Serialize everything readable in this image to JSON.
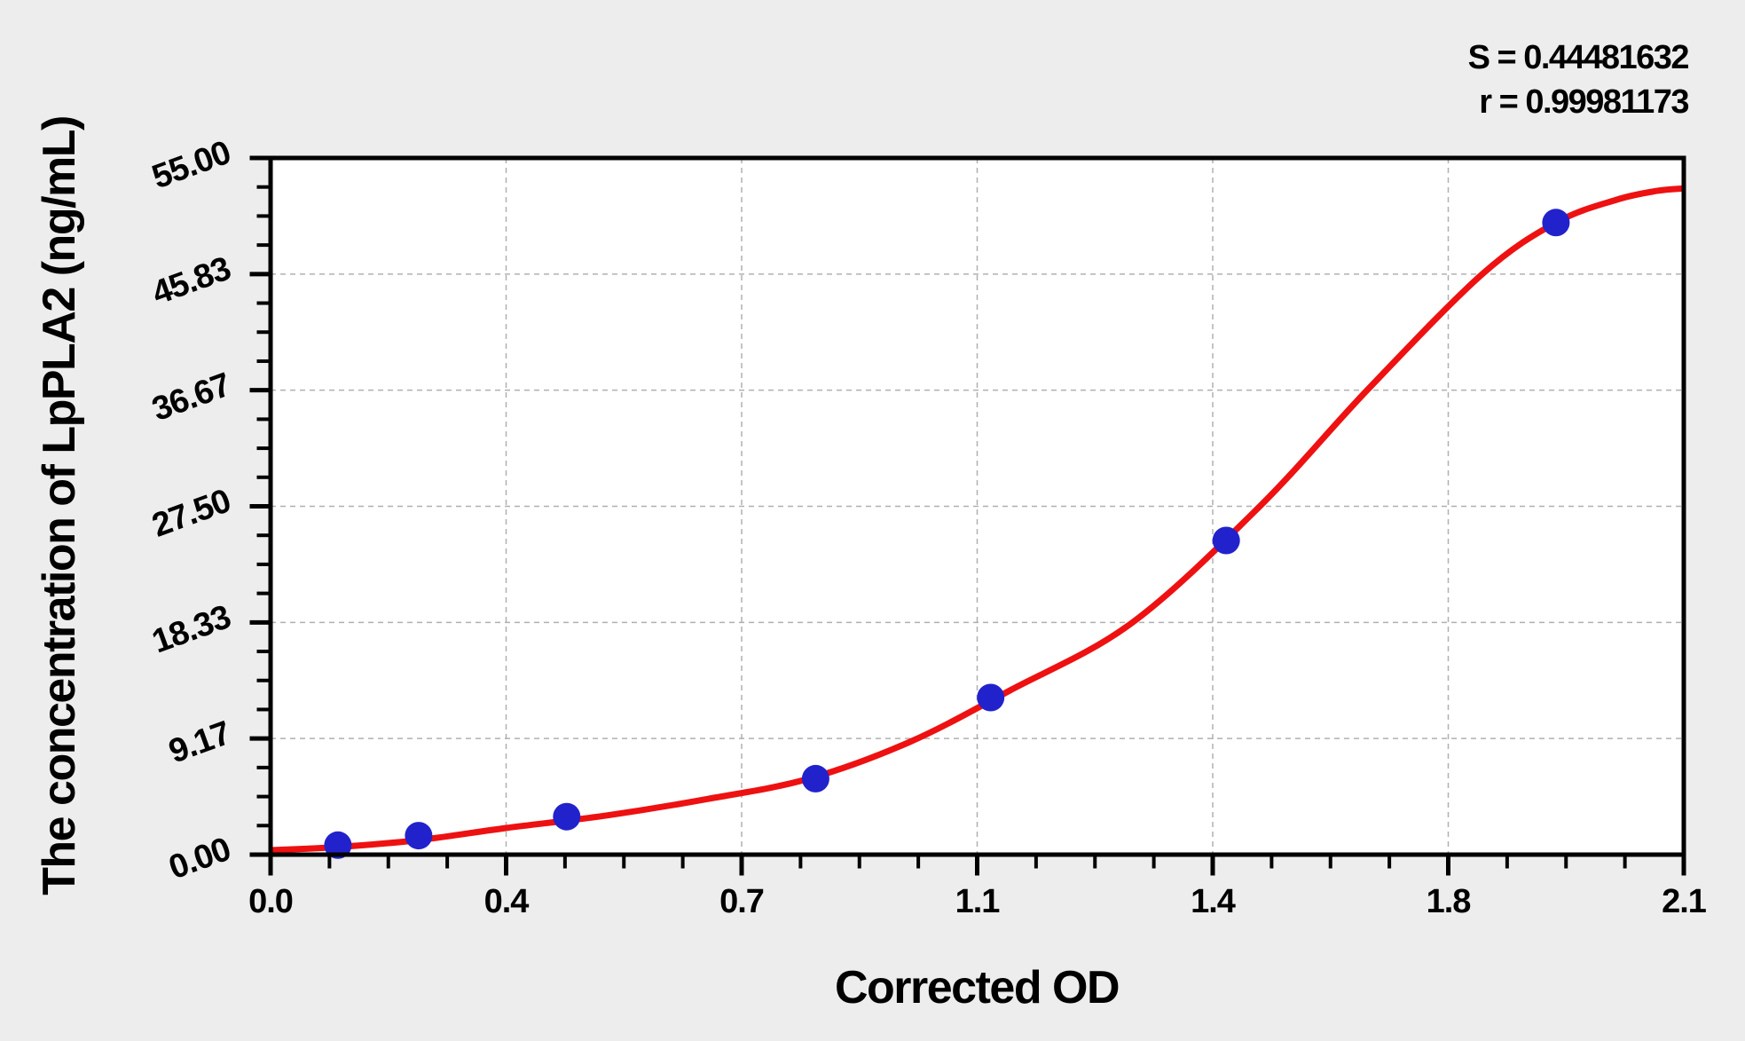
{
  "chart_data": {
    "type": "scatter",
    "title": "",
    "xlabel": "Corrected OD",
    "ylabel": "The concentration of LpPLA2 (ng/mL)",
    "annotations": [
      "S = 0.44481632",
      "r = 0.99981173"
    ],
    "xlim": [
      0,
      2.1
    ],
    "ylim": [
      0,
      55
    ],
    "x_major_ticks": [
      0,
      0.35,
      0.7,
      1.05,
      1.4,
      1.75,
      2.1
    ],
    "x_tick_labels": [
      "0.0",
      "0.4",
      "0.7",
      "1.1",
      "1.4",
      "1.8",
      "2.1"
    ],
    "y_major_ticks": [
      0,
      9.1667,
      18.3333,
      27.5,
      36.6667,
      45.8333,
      55
    ],
    "y_tick_labels": [
      "0.00",
      "9.17",
      "18.33",
      "27.50",
      "36.67",
      "45.83",
      "55.00"
    ],
    "minor_divisions_per_major": 4,
    "grid": {
      "show": true,
      "style": "dashed",
      "at": "interior_major_ticks",
      "color": "#b0b0b0"
    },
    "legend": "none",
    "series": [
      {
        "name": "standard-points",
        "type": "scatter",
        "color": "#2222cc",
        "marker": "circle",
        "points": [
          [
            0.1,
            0.75
          ],
          [
            0.22,
            1.5
          ],
          [
            0.44,
            3.0
          ],
          [
            0.81,
            6.0
          ],
          [
            1.07,
            12.4
          ],
          [
            1.42,
            24.8
          ],
          [
            1.91,
            49.9
          ]
        ]
      },
      {
        "name": "fitted-curve",
        "type": "line",
        "color": "#ee1111",
        "points": [
          [
            0.0,
            0.35
          ],
          [
            0.1,
            0.6
          ],
          [
            0.22,
            1.15
          ],
          [
            0.35,
            2.1
          ],
          [
            0.5,
            3.1
          ],
          [
            0.65,
            4.4
          ],
          [
            0.8,
            6.0
          ],
          [
            0.95,
            8.9
          ],
          [
            1.1,
            13.0
          ],
          [
            1.28,
            18.3
          ],
          [
            1.47,
            27.5
          ],
          [
            1.63,
            36.7
          ],
          [
            1.8,
            45.8
          ],
          [
            1.91,
            49.9
          ],
          [
            2.0,
            51.7
          ],
          [
            2.06,
            52.4
          ],
          [
            2.1,
            52.6
          ]
        ]
      }
    ],
    "colors": {
      "page_background": "#ededed",
      "plot_background": "#ffffff",
      "axis": "#000000",
      "grid": "#b0b0b0",
      "curve": "#ee1111",
      "points": "#2222cc"
    }
  }
}
